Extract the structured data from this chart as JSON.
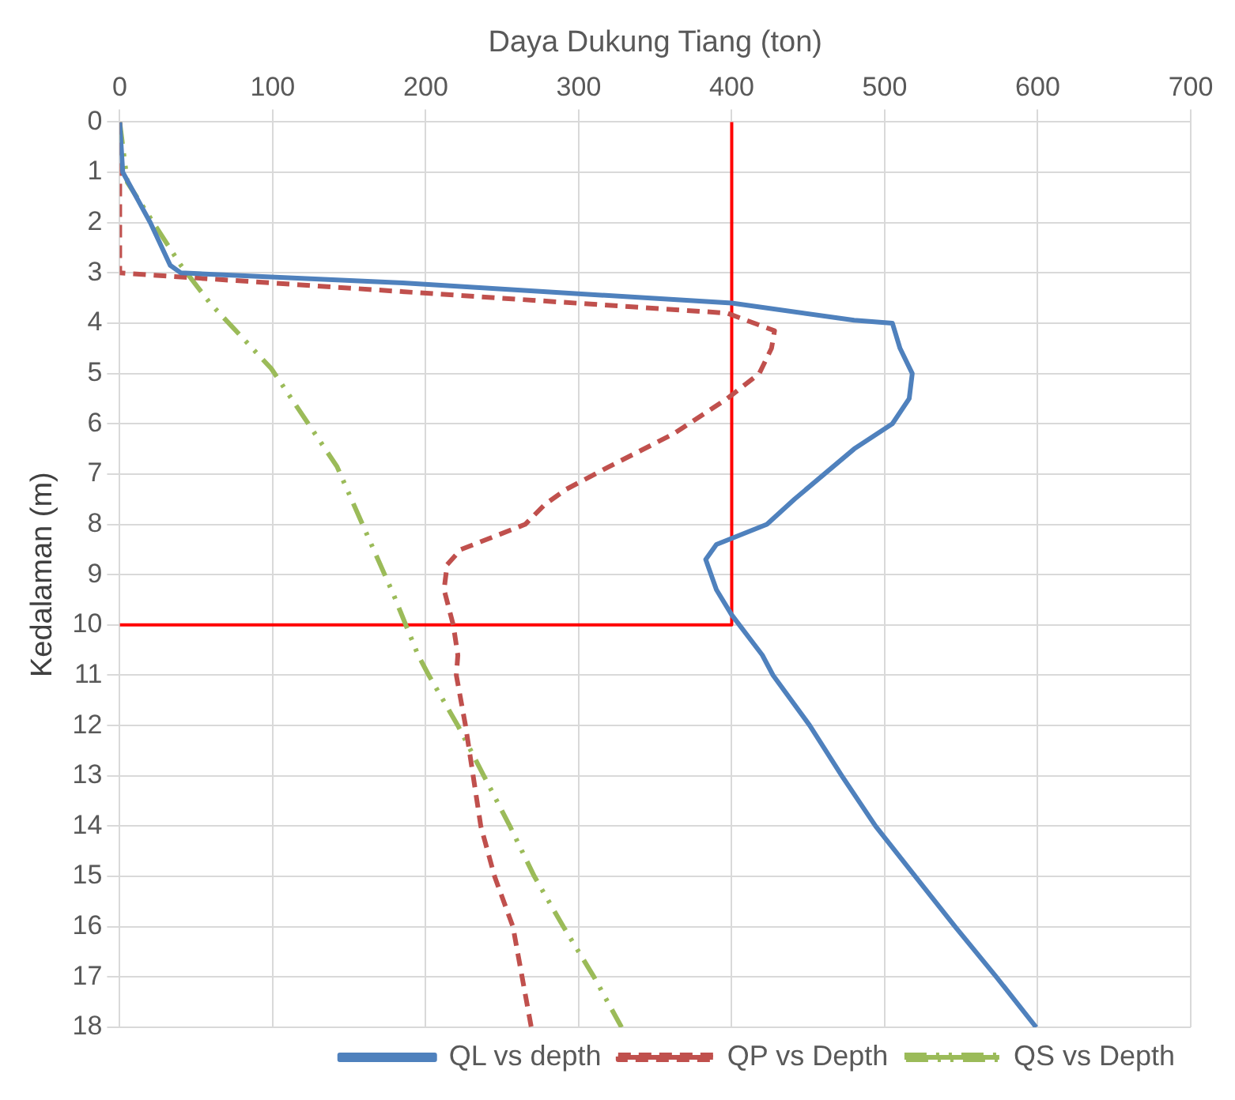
{
  "chart_data": {
    "type": "line",
    "xlabel": "Daya Dukung Tiang (ton)",
    "ylabel": "Kedalaman (m)",
    "xlim": [
      0,
      700
    ],
    "xticks": [
      0,
      100,
      200,
      300,
      400,
      500,
      600,
      700
    ],
    "ylim": [
      18,
      0
    ],
    "yticks": [
      0,
      1,
      2,
      3,
      4,
      5,
      6,
      7,
      8,
      9,
      10,
      11,
      12,
      13,
      14,
      15,
      16,
      17,
      18
    ],
    "grid": true,
    "legend": "bottom right",
    "marker": "none",
    "series": [
      {
        "name": "QL vs depth",
        "color": "#4f81bd",
        "line_style": "solid",
        "x": [
          0,
          2,
          20,
          33,
          40,
          185,
          400,
          480,
          505,
          510,
          518,
          516,
          505,
          480,
          441,
          423,
          390,
          383,
          390,
          400,
          420,
          427,
          451,
          472,
          494,
          520,
          546,
          573,
          599
        ],
        "values": [
          0,
          1,
          2,
          2.85,
          3,
          3.2,
          3.6,
          3.94,
          4,
          4.5,
          5,
          5.5,
          6,
          6.5,
          7.5,
          8,
          8.4,
          8.7,
          9.3,
          9.8,
          10.6,
          11,
          12,
          13,
          14,
          15,
          16,
          17,
          18
        ]
      },
      {
        "name": "QP vs Depth",
        "color": "#c0504d",
        "line_style": "dashed",
        "x": [
          0,
          0,
          0,
          397,
          428,
          426,
          418,
          397,
          362,
          320,
          292,
          278,
          265,
          223,
          214,
          212,
          218,
          221,
          220,
          226,
          231,
          236,
          245,
          257,
          263,
          269
        ],
        "values": [
          0,
          2.6,
          3,
          3.8,
          4.15,
          4.5,
          5,
          5.5,
          6.2,
          6.85,
          7.3,
          7.6,
          8,
          8.5,
          8.8,
          9.3,
          10,
          10.6,
          11,
          12,
          13,
          14,
          15,
          16,
          17,
          18
        ]
      },
      {
        "name": "QS vs Depth",
        "color": "#9bbb59",
        "line_style": "dashdot",
        "x": [
          0,
          5,
          40,
          59,
          99,
          142,
          179,
          195,
          202,
          221,
          238,
          255,
          271,
          290,
          310,
          328
        ],
        "values": [
          0,
          1.2,
          2.85,
          3.6,
          4.9,
          6.85,
          9.4,
          10.6,
          11,
          12,
          13,
          14,
          15,
          16,
          17,
          18
        ]
      },
      {
        "color": "#ff0000",
        "line_style": "solid",
        "x": [
          400,
          400,
          0
        ],
        "values": [
          0,
          10,
          10
        ]
      }
    ]
  }
}
